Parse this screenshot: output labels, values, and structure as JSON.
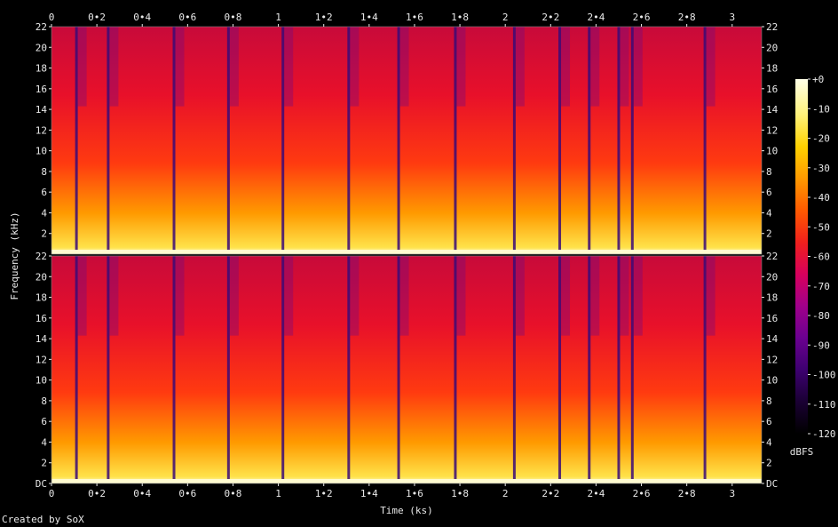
{
  "chart_data": {
    "type": "heatmap",
    "subtype": "spectrogram",
    "xlabel": "Time (ks)",
    "ylabel": "Frequency (kHz)",
    "x_ticks": [
      "0",
      "0•2",
      "0•4",
      "0•6",
      "0•8",
      "1",
      "1•2",
      "1•4",
      "1•6",
      "1•8",
      "2",
      "2•2",
      "2•4",
      "2•6",
      "2•8",
      "3"
    ],
    "x_tick_values": [
      0,
      0.2,
      0.4,
      0.6,
      0.8,
      1.0,
      1.2,
      1.4,
      1.6,
      1.8,
      2.0,
      2.2,
      2.4,
      2.6,
      2.8,
      3.0
    ],
    "xlim": [
      0,
      3.13
    ],
    "channels": [
      {
        "y_ticks": [
          "2",
          "4",
          "6",
          "8",
          "10",
          "12",
          "14",
          "16",
          "18",
          "20",
          "22"
        ],
        "y_tick_values": [
          2,
          4,
          6,
          8,
          10,
          12,
          14,
          16,
          18,
          20,
          22
        ],
        "ylim": [
          0,
          22
        ]
      },
      {
        "y_ticks": [
          "DC",
          "2",
          "4",
          "6",
          "8",
          "10",
          "12",
          "14",
          "16",
          "18",
          "20",
          "22"
        ],
        "y_tick_values": [
          0,
          2,
          4,
          6,
          8,
          10,
          12,
          14,
          16,
          18,
          20,
          22
        ],
        "ylim": [
          0,
          22
        ]
      }
    ],
    "colorbar": {
      "label": "dBFS",
      "ticks": [
        "+0",
        "-10",
        "-20",
        "-30",
        "-40",
        "-50",
        "-60",
        "-70",
        "-80",
        "-90",
        "-100",
        "-110",
        "-120"
      ],
      "tick_values": [
        0,
        -10,
        -20,
        -30,
        -40,
        -50,
        -60,
        -70,
        -80,
        -90,
        -100,
        -110,
        -120
      ],
      "range": [
        -120,
        0
      ],
      "colors": [
        "#000000",
        "#1a0033",
        "#3d0070",
        "#6b0090",
        "#a0008a",
        "#d8005c",
        "#f0201c",
        "#ff5a00",
        "#ff9a00",
        "#ffd200",
        "#fff27a",
        "#ffffe8"
      ]
    },
    "segment_boundaries_ks": [
      0.11,
      0.25,
      0.54,
      0.78,
      1.02,
      1.31,
      1.53,
      1.78,
      2.04,
      2.24,
      2.37,
      2.5,
      2.56,
      2.88
    ],
    "credit": "Created by SoX"
  }
}
